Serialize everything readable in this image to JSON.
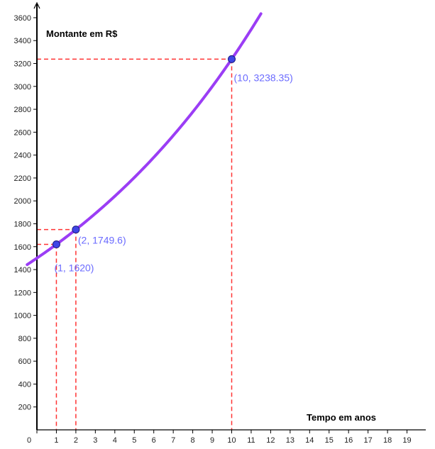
{
  "chart_data": {
    "type": "line",
    "xlabel": "Tempo em anos",
    "ylabel": "Montante em R$",
    "xlim": [
      0,
      19.5
    ],
    "ylim": [
      0,
      3750
    ],
    "x_ticks": [
      0,
      1,
      2,
      3,
      4,
      5,
      6,
      7,
      8,
      9,
      10,
      11,
      12,
      13,
      14,
      15,
      16,
      17,
      18,
      19
    ],
    "y_ticks": [
      200,
      400,
      600,
      800,
      1000,
      1200,
      1400,
      1600,
      1800,
      2000,
      2200,
      2400,
      2600,
      2800,
      3000,
      3200,
      3400,
      3600
    ],
    "curve": {
      "function": "1500 * 1.08^x",
      "x_from": -0.5,
      "x_to": 11.5,
      "color": "#9b3df5"
    },
    "points": [
      {
        "x": 1,
        "y": 1620,
        "label": "(1, 1620)"
      },
      {
        "x": 2,
        "y": 1749.6,
        "label": "(2, 1749.6)"
      },
      {
        "x": 10,
        "y": 3238.35,
        "label": "(10, 3238.35)"
      }
    ],
    "guide_color": "#ff3333",
    "point_color": "#3f45e6",
    "label_color": "#6b6bff",
    "grid": false
  }
}
